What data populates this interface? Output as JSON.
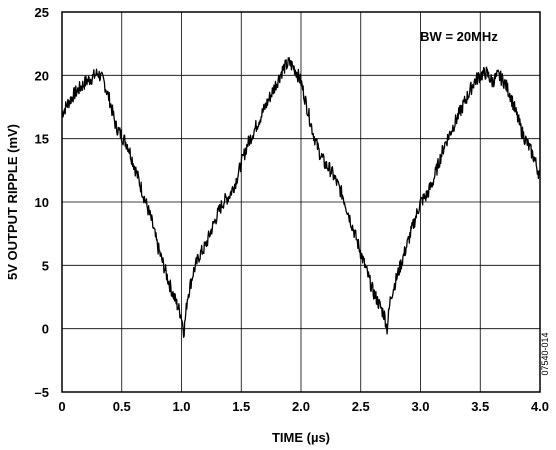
{
  "chart_data": {
    "type": "line",
    "title": "",
    "xlabel": "TIME (µs)",
    "ylabel": "5V OUTPUT RIPPLE (mV)",
    "xlim": [
      0,
      4.0
    ],
    "ylim": [
      -5,
      25
    ],
    "x_ticks": [
      0,
      0.5,
      1.0,
      1.5,
      2.0,
      2.5,
      3.0,
      3.5,
      4.0
    ],
    "x_tick_labels": [
      "0",
      "0.5",
      "1.0",
      "1.5",
      "2.0",
      "2.5",
      "3.0",
      "3.5",
      "4.0"
    ],
    "y_ticks": [
      -5,
      0,
      5,
      10,
      15,
      20,
      25
    ],
    "y_tick_labels": [
      "–5",
      "0",
      "5",
      "10",
      "15",
      "20",
      "25"
    ],
    "grid": true,
    "annotation": "BW = 20MHz",
    "figure_id": "07540-014",
    "line_color": "#000000",
    "series": [
      {
        "x": [
          0.0,
          0.05,
          0.1,
          0.15,
          0.2,
          0.25,
          0.3,
          0.35,
          0.4,
          0.45,
          0.5,
          0.55,
          0.6,
          0.65,
          0.7,
          0.75,
          0.8,
          0.85,
          0.9,
          0.95,
          1.0,
          1.02,
          1.05,
          1.1,
          1.15,
          1.2,
          1.25,
          1.3,
          1.35,
          1.4,
          1.45,
          1.5,
          1.55,
          1.6,
          1.65,
          1.7,
          1.75,
          1.8,
          1.85,
          1.9,
          1.95,
          2.0,
          2.05,
          2.1,
          2.15,
          2.2,
          2.25,
          2.3,
          2.35,
          2.4,
          2.45,
          2.5,
          2.55,
          2.6,
          2.65,
          2.7,
          2.72,
          2.75,
          2.8,
          2.85,
          2.9,
          2.95,
          3.0,
          3.05,
          3.1,
          3.15,
          3.2,
          3.25,
          3.3,
          3.35,
          3.4,
          3.45,
          3.5,
          3.55,
          3.6,
          3.65,
          3.7,
          3.75,
          3.8,
          3.85,
          3.9,
          3.95,
          4.0
        ],
        "values": [
          17.0,
          17.8,
          18.5,
          19.0,
          19.5,
          19.8,
          20.2,
          19.5,
          18.0,
          16.0,
          15.2,
          14.5,
          13.0,
          11.5,
          10.0,
          8.5,
          6.5,
          5.0,
          3.5,
          2.2,
          1.0,
          -0.3,
          2.5,
          4.5,
          5.8,
          6.5,
          7.8,
          9.0,
          10.0,
          10.5,
          11.5,
          13.0,
          14.5,
          15.5,
          16.5,
          17.5,
          18.5,
          19.5,
          20.5,
          21.0,
          20.5,
          19.5,
          17.5,
          15.5,
          14.0,
          13.0,
          12.5,
          11.5,
          10.5,
          9.0,
          7.5,
          6.0,
          4.5,
          3.0,
          2.0,
          1.0,
          0.0,
          2.5,
          4.0,
          5.5,
          7.0,
          8.5,
          10.0,
          10.5,
          11.5,
          13.0,
          14.5,
          15.5,
          16.5,
          17.5,
          18.5,
          19.5,
          20.0,
          20.2,
          19.5,
          20.0,
          19.5,
          18.5,
          17.0,
          15.5,
          14.5,
          13.5,
          12.0
        ]
      }
    ]
  }
}
